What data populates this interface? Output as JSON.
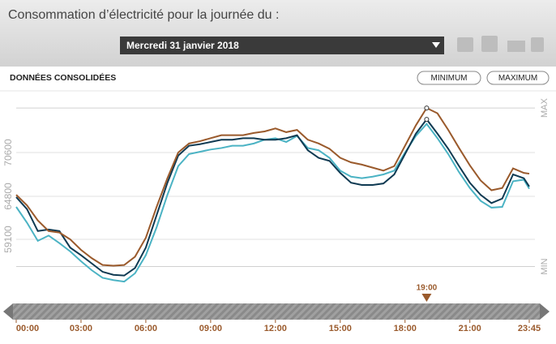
{
  "header": {
    "title": "Consommation d’électricité pour la journée du :",
    "date": "Mercredi 31 janvier 2018"
  },
  "controls": {
    "section": "DONNÉES CONSOLIDÉES",
    "buttons": [
      "MINIMUM",
      "MAXIMUM"
    ]
  },
  "chart_data": {
    "type": "line",
    "x": [
      0,
      0.5,
      1,
      1.5,
      2,
      2.5,
      3,
      3.5,
      4,
      4.5,
      5,
      5.5,
      6,
      6.5,
      7,
      7.5,
      8,
      8.5,
      9,
      9.5,
      10,
      10.5,
      11,
      11.5,
      12,
      12.5,
      13,
      13.5,
      14,
      14.5,
      15,
      15.5,
      16,
      16.5,
      17,
      17.5,
      18,
      18.5,
      19,
      19.5,
      20,
      20.5,
      21,
      21.5,
      22,
      22.5,
      23,
      23.5,
      23.75
    ],
    "series": [
      {
        "color": "#9a5a2c",
        "values": [
          65000,
          63600,
          61600,
          60200,
          60000,
          59100,
          57700,
          56600,
          55700,
          55600,
          55700,
          56800,
          59300,
          63400,
          67200,
          70600,
          71800,
          72100,
          72500,
          72900,
          72900,
          72900,
          73200,
          73400,
          73800,
          73300,
          73600,
          72300,
          71800,
          71100,
          69900,
          69300,
          69000,
          68600,
          68200,
          68800,
          71500,
          74200,
          76500,
          75800,
          73600,
          71200,
          68900,
          66900,
          65600,
          65900,
          68500,
          67900,
          67800
        ]
      },
      {
        "color": "#0f3a52",
        "values": [
          64700,
          63100,
          60200,
          60400,
          60200,
          58000,
          57000,
          55900,
          54800,
          54400,
          54300,
          55300,
          58000,
          62300,
          66600,
          70200,
          71500,
          71700,
          72000,
          72300,
          72300,
          72500,
          72500,
          72300,
          72300,
          72500,
          72900,
          70900,
          69900,
          69500,
          67900,
          66600,
          66300,
          66300,
          66500,
          67700,
          70400,
          73100,
          75000,
          73100,
          71100,
          68800,
          66600,
          65000,
          63900,
          64500,
          67700,
          67200,
          66100
        ]
      },
      {
        "color": "#4bb3c4",
        "values": [
          63400,
          61300,
          58900,
          59600,
          58600,
          57500,
          56200,
          55000,
          54000,
          53700,
          53500,
          54600,
          57000,
          60700,
          65000,
          68800,
          70400,
          70700,
          71000,
          71200,
          71500,
          71500,
          71800,
          72300,
          72500,
          72000,
          72800,
          71200,
          70900,
          69900,
          68200,
          67400,
          67200,
          67400,
          67700,
          68200,
          70600,
          72800,
          74400,
          72500,
          70400,
          68000,
          65900,
          64200,
          63300,
          63400,
          66800,
          67000,
          65800
        ]
      }
    ],
    "xlim": [
      0,
      23.75
    ],
    "xticks": [
      {
        "value": 0,
        "label": "00:00"
      },
      {
        "value": 3,
        "label": "03:00"
      },
      {
        "value": 6,
        "label": "06:00"
      },
      {
        "value": 9,
        "label": "09:00"
      },
      {
        "value": 12,
        "label": "12:00"
      },
      {
        "value": 15,
        "label": "15:00"
      },
      {
        "value": 18,
        "label": "18:00"
      },
      {
        "value": 21,
        "label": "21:00"
      },
      {
        "value": 23.75,
        "label": "23:45"
      }
    ],
    "ylim": [
      52650,
      78450
    ],
    "yticks": [
      59100,
      64800,
      70600
    ],
    "ref_lines": [
      {
        "value": 76500,
        "label": "MAX"
      },
      {
        "value": 55500,
        "label": "MIN"
      }
    ],
    "cursor": {
      "value": 19,
      "label": "19:00"
    },
    "grid": true
  }
}
